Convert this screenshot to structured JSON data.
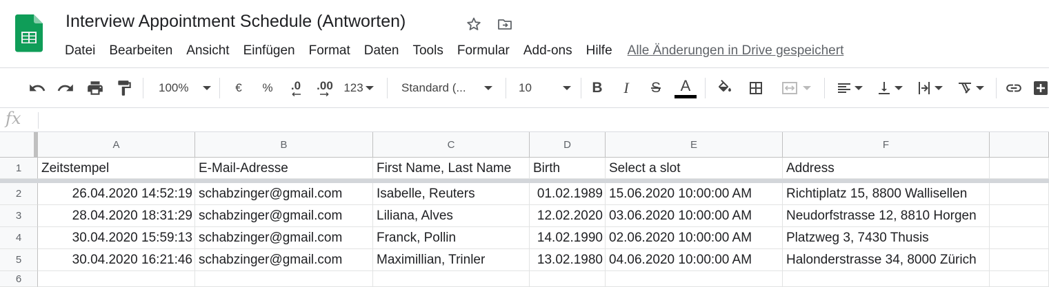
{
  "app": {
    "doc_title": "Interview Appointment Schedule (Antworten)",
    "logo_icon": "google-sheets-logo",
    "accent_color": "#0f9d58"
  },
  "menu": {
    "items": [
      {
        "label": "Datei"
      },
      {
        "label": "Bearbeiten"
      },
      {
        "label": "Ansicht"
      },
      {
        "label": "Einfügen"
      },
      {
        "label": "Format"
      },
      {
        "label": "Daten"
      },
      {
        "label": "Tools"
      },
      {
        "label": "Formular"
      },
      {
        "label": "Add-ons"
      },
      {
        "label": "Hilfe"
      }
    ],
    "save_status": "Alle Änderungen in Drive gespeichert"
  },
  "toolbar": {
    "zoom": "100%",
    "currency": "€",
    "percent": "%",
    "decrease_decimals": ".0",
    "increase_decimals": ".00",
    "more_formats": "123",
    "font_family": "Standard (...",
    "font_size": "10",
    "bold": "B",
    "italic": "I",
    "strikethrough": "S",
    "text_color": "A"
  },
  "formula_bar": {
    "fx_label": "fx",
    "value": ""
  },
  "sheet": {
    "columns": [
      "A",
      "B",
      "C",
      "D",
      "E",
      "F"
    ],
    "row_numbers": [
      "1",
      "2",
      "3",
      "4",
      "5",
      "6"
    ],
    "rows": [
      [
        "Zeitstempel",
        "E-Mail-Adresse",
        "First Name, Last Name",
        "Birth",
        "Select a slot",
        "Address"
      ],
      [
        "26.04.2020 14:52:19",
        "schabzinger@gmail.com",
        "Isabelle, Reuters",
        "01.02.1989",
        "15.06.2020 10:00:00 AM",
        "Richtiplatz 15, 8800 Wallisellen"
      ],
      [
        "28.04.2020 18:31:29",
        "schabzinger@gmail.com",
        "Liliana, Alves",
        "12.02.2020",
        "03.06.2020 10:00:00 AM",
        "Neudorfstrasse 12, 8810 Horgen"
      ],
      [
        "30.04.2020 15:59:13",
        "schabzinger@gmail.com",
        "Franck, Pollin",
        "14.02.1990",
        "02.06.2020 10:00:00 AM",
        "Platzweg 3, 7430 Thusis"
      ],
      [
        "30.04.2020 16:21:46",
        "schabzinger@gmail.com",
        "Maximillian, Trinler",
        "13.02.1980",
        "04.06.2020 10:00:00 AM",
        "Halonderstrasse 34, 8000 Zürich"
      ],
      [
        "",
        "",
        "",
        "",
        "",
        ""
      ]
    ]
  }
}
